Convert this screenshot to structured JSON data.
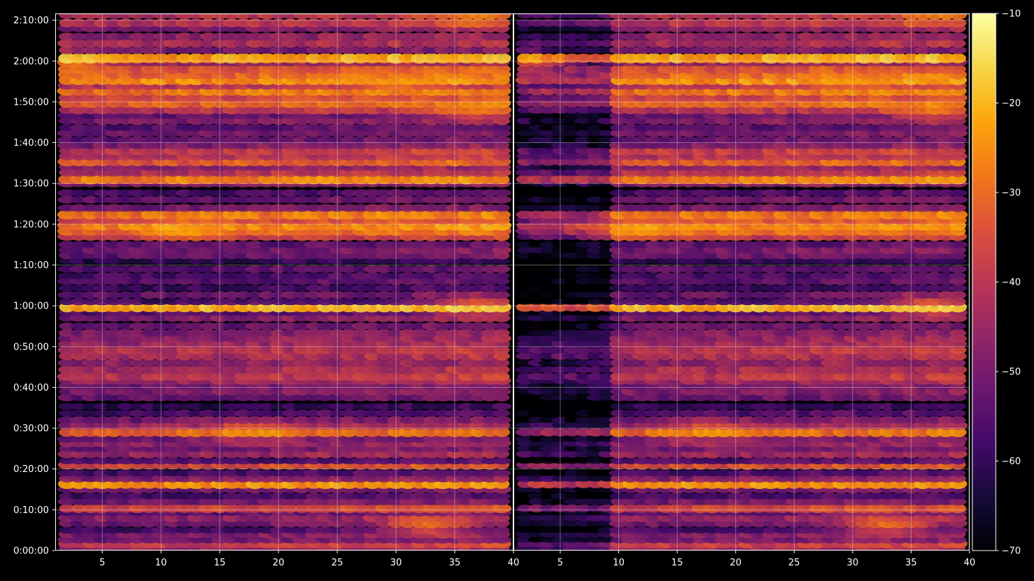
{
  "chart_data": {
    "type": "heatmap",
    "title": "",
    "xlabel": "",
    "ylabel": "",
    "background": "#000000",
    "grid": true,
    "colormap": "inferno",
    "colorbar": {
      "range": [
        -70,
        -10
      ],
      "ticks": [
        -10,
        -20,
        -30,
        -40,
        -50,
        -60,
        -70
      ],
      "tick_labels": [
        "−10",
        "−20",
        "−30",
        "−40",
        "−50",
        "−60",
        "−70"
      ]
    },
    "y_axis": {
      "range_seconds": [
        0,
        7900
      ],
      "tick_seconds": [
        0,
        600,
        1200,
        1800,
        2400,
        3000,
        3600,
        4200,
        4800,
        5400,
        6000,
        6600,
        7200,
        7800
      ],
      "tick_labels": [
        "0:00:00",
        "0:10:00",
        "0:20:00",
        "0:30:00",
        "0:40:00",
        "0:50:00",
        "1:00:00",
        "1:10:00",
        "1:20:00",
        "1:30:00",
        "1:40:00",
        "1:50:00",
        "2:00:00",
        "2:10:00"
      ]
    },
    "panels": [
      {
        "x_range": [
          1,
          40
        ],
        "x_ticks": [
          5,
          10,
          15,
          20,
          25,
          30,
          35,
          40
        ],
        "x_tick_labels": [
          "5",
          "10",
          "15",
          "20",
          "25",
          "30",
          "35",
          "40"
        ],
        "x_cells": [
          2,
          39
        ]
      },
      {
        "x_range": [
          1,
          40
        ],
        "x_ticks": [
          5,
          10,
          15,
          20,
          25,
          30,
          35,
          40
        ],
        "x_tick_labels": [
          "5",
          "10",
          "15",
          "20",
          "25",
          "30",
          "35",
          "40"
        ],
        "x_cells": [
          2,
          39
        ],
        "low_region_below_x": 10
      }
    ],
    "bands": [
      {
        "t": 40,
        "v": -44
      },
      {
        "t": 100,
        "v": -38
      },
      {
        "t": 160,
        "v": -50
      },
      {
        "t": 240,
        "v": -48
      },
      {
        "t": 300,
        "v": -56
      },
      {
        "t": 400,
        "v": -50
      },
      {
        "t": 480,
        "v": -46
      },
      {
        "t": 560,
        "v": -52
      },
      {
        "t": 620,
        "v": -36
      },
      {
        "t": 720,
        "v": -50
      },
      {
        "t": 800,
        "v": -56
      },
      {
        "t": 900,
        "v": -50
      },
      {
        "t": 980,
        "v": -24
      },
      {
        "t": 1060,
        "v": -48
      },
      {
        "t": 1140,
        "v": -56
      },
      {
        "t": 1260,
        "v": -34
      },
      {
        "t": 1320,
        "v": -56
      },
      {
        "t": 1420,
        "v": -44
      },
      {
        "t": 1500,
        "v": -50
      },
      {
        "t": 1580,
        "v": -46
      },
      {
        "t": 1640,
        "v": -50
      },
      {
        "t": 1740,
        "v": -30
      },
      {
        "t": 1840,
        "v": -44
      },
      {
        "t": 1920,
        "v": -50
      },
      {
        "t": 2020,
        "v": -56
      },
      {
        "t": 2120,
        "v": -60
      },
      {
        "t": 2250,
        "v": -52
      },
      {
        "t": 2340,
        "v": -48
      },
      {
        "t": 2420,
        "v": -50
      },
      {
        "t": 2500,
        "v": -44
      },
      {
        "t": 2560,
        "v": -40
      },
      {
        "t": 2660,
        "v": -42
      },
      {
        "t": 2760,
        "v": -46
      },
      {
        "t": 2860,
        "v": -42
      },
      {
        "t": 2950,
        "v": -40
      },
      {
        "t": 3040,
        "v": -44
      },
      {
        "t": 3120,
        "v": -46
      },
      {
        "t": 3200,
        "v": -48
      },
      {
        "t": 3300,
        "v": -52
      },
      {
        "t": 3420,
        "v": -48
      },
      {
        "t": 3500,
        "v": -54
      },
      {
        "t": 3580,
        "v": -20
      },
      {
        "t": 3660,
        "v": -56
      },
      {
        "t": 3760,
        "v": -52
      },
      {
        "t": 3860,
        "v": -58
      },
      {
        "t": 3960,
        "v": -54
      },
      {
        "t": 4040,
        "v": -56
      },
      {
        "t": 4140,
        "v": -54
      },
      {
        "t": 4260,
        "v": -60
      },
      {
        "t": 4340,
        "v": -52
      },
      {
        "t": 4420,
        "v": -50
      },
      {
        "t": 4500,
        "v": -54
      },
      {
        "t": 4620,
        "v": -38
      },
      {
        "t": 4700,
        "v": -30
      },
      {
        "t": 4780,
        "v": -26
      },
      {
        "t": 4860,
        "v": -34
      },
      {
        "t": 4940,
        "v": -28
      },
      {
        "t": 5040,
        "v": -50
      },
      {
        "t": 5160,
        "v": -52
      },
      {
        "t": 5260,
        "v": -56
      },
      {
        "t": 5400,
        "v": -48
      },
      {
        "t": 5460,
        "v": -26
      },
      {
        "t": 5560,
        "v": -40
      },
      {
        "t": 5640,
        "v": -46
      },
      {
        "t": 5720,
        "v": -32
      },
      {
        "t": 5800,
        "v": -40
      },
      {
        "t": 5880,
        "v": -38
      },
      {
        "t": 5960,
        "v": -48
      },
      {
        "t": 6040,
        "v": -52
      },
      {
        "t": 6140,
        "v": -50
      },
      {
        "t": 6220,
        "v": -54
      },
      {
        "t": 6320,
        "v": -48
      },
      {
        "t": 6400,
        "v": -52
      },
      {
        "t": 6480,
        "v": -40
      },
      {
        "t": 6580,
        "v": -30
      },
      {
        "t": 6660,
        "v": -36
      },
      {
        "t": 6760,
        "v": -28
      },
      {
        "t": 6840,
        "v": -40
      },
      {
        "t": 6920,
        "v": -24
      },
      {
        "t": 7000,
        "v": -30
      },
      {
        "t": 7080,
        "v": -34
      },
      {
        "t": 7180,
        "v": -46
      },
      {
        "t": 7240,
        "v": -22
      },
      {
        "t": 7360,
        "v": -50
      },
      {
        "t": 7460,
        "v": -42
      },
      {
        "t": 7560,
        "v": -46
      },
      {
        "t": 7680,
        "v": -48
      },
      {
        "t": 7760,
        "v": -40
      },
      {
        "t": 7880,
        "v": -40
      }
    ],
    "hotspots": [
      {
        "x": 2,
        "t": 7220,
        "v": -12
      },
      {
        "x": 12,
        "t": 4720,
        "v": -18
      },
      {
        "x": 33,
        "t": 380,
        "v": -16
      },
      {
        "x": 37,
        "t": 3600,
        "v": -16
      },
      {
        "x": 37,
        "t": 7860,
        "v": -20
      },
      {
        "x": 37,
        "t": 6480,
        "v": -22
      },
      {
        "x": 30,
        "t": 6880,
        "v": -24
      },
      {
        "x": 18,
        "t": 1760,
        "v": -20
      }
    ]
  }
}
